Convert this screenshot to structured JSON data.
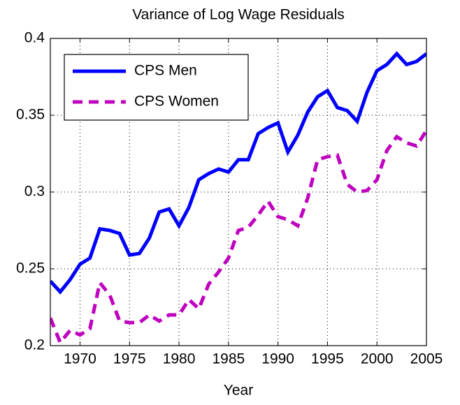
{
  "chart_data": {
    "type": "line",
    "title": "Variance of Log Wage Residuals",
    "x_label": "Year",
    "x": [
      1967,
      1968,
      1969,
      1970,
      1971,
      1972,
      1973,
      1974,
      1975,
      1976,
      1977,
      1978,
      1979,
      1980,
      1981,
      1982,
      1983,
      1984,
      1985,
      1986,
      1987,
      1988,
      1989,
      1990,
      1991,
      1992,
      1993,
      1994,
      1995,
      1996,
      1997,
      1998,
      1999,
      2000,
      2001,
      2002,
      2003,
      2004,
      2005
    ],
    "series": [
      {
        "name": "CPS Men",
        "color": "#0000ff",
        "dash": "solid",
        "values": [
          0.242,
          0.235,
          0.243,
          0.253,
          0.257,
          0.276,
          0.275,
          0.273,
          0.259,
          0.26,
          0.27,
          0.287,
          0.289,
          0.278,
          0.29,
          0.308,
          0.312,
          0.315,
          0.313,
          0.321,
          0.321,
          0.338,
          0.342,
          0.345,
          0.326,
          0.337,
          0.352,
          0.362,
          0.366,
          0.355,
          0.353,
          0.346,
          0.365,
          0.379,
          0.383,
          0.39,
          0.383,
          0.385,
          0.39
        ]
      },
      {
        "name": "CPS Women",
        "color": "#bf00bf",
        "dash": "dashed",
        "values": [
          0.218,
          0.202,
          0.21,
          0.207,
          0.211,
          0.241,
          0.233,
          0.216,
          0.215,
          0.215,
          0.22,
          0.216,
          0.22,
          0.22,
          0.23,
          0.224,
          0.24,
          0.248,
          0.257,
          0.275,
          0.277,
          0.285,
          0.294,
          0.284,
          0.282,
          0.278,
          0.296,
          0.321,
          0.323,
          0.324,
          0.305,
          0.3,
          0.301,
          0.308,
          0.327,
          0.336,
          0.332,
          0.33,
          0.34
        ]
      }
    ],
    "xlim": [
      1967,
      2005
    ],
    "xticks": [
      1970,
      1975,
      1980,
      1985,
      1990,
      1995,
      2000,
      2005
    ],
    "ylim": [
      0.2,
      0.4
    ],
    "yticks": [
      0.2,
      0.25,
      0.3,
      0.35,
      0.4
    ],
    "grid": true,
    "legend": "upper-left"
  }
}
